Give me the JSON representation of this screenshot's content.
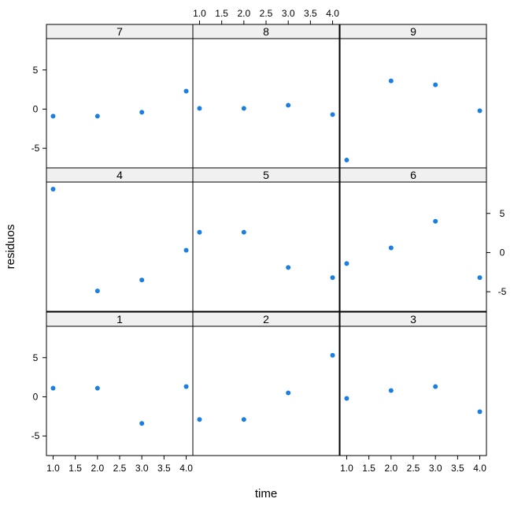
{
  "chart_data": {
    "type": "scatter",
    "xlabel": "time",
    "ylabel": "residuos",
    "xlim": [
      0.85,
      4.15
    ],
    "ylim": [
      -7.5,
      9.0
    ],
    "x_ticks": [
      "1.0",
      "1.5",
      "2.0",
      "2.5",
      "3.0",
      "3.5",
      "4.0"
    ],
    "y_ticks": [
      "-5",
      "0",
      "5"
    ],
    "point_color": "#1a7fe0",
    "panels": [
      {
        "label": "7",
        "x": [
          1.0,
          2.0,
          3.0,
          4.0
        ],
        "y": [
          -0.9,
          -0.9,
          -0.4,
          2.3
        ]
      },
      {
        "label": "8",
        "x": [
          1.0,
          2.0,
          3.0,
          4.0
        ],
        "y": [
          0.1,
          0.1,
          0.5,
          -0.7
        ]
      },
      {
        "label": "9",
        "x": [
          1.0,
          2.0,
          3.0,
          4.0
        ],
        "y": [
          -6.5,
          3.6,
          3.1,
          -0.2
        ]
      },
      {
        "label": "4",
        "x": [
          1.0,
          2.0,
          3.0,
          4.0
        ],
        "y": [
          8.1,
          -4.9,
          -3.5,
          0.3
        ]
      },
      {
        "label": "5",
        "x": [
          1.0,
          2.0,
          3.0,
          4.0
        ],
        "y": [
          2.6,
          2.6,
          -1.9,
          -3.2
        ]
      },
      {
        "label": "6",
        "x": [
          1.0,
          2.0,
          3.0,
          4.0
        ],
        "y": [
          -1.4,
          0.6,
          4.0,
          -3.2
        ]
      },
      {
        "label": "1",
        "x": [
          1.0,
          2.0,
          3.0,
          4.0
        ],
        "y": [
          1.1,
          1.1,
          -3.4,
          1.3
        ]
      },
      {
        "label": "2",
        "x": [
          1.0,
          2.0,
          3.0,
          4.0
        ],
        "y": [
          -2.9,
          -2.9,
          0.5,
          5.3
        ]
      },
      {
        "label": "3",
        "x": [
          1.0,
          2.0,
          3.0,
          4.0
        ],
        "y": [
          -0.2,
          0.8,
          1.3,
          -1.9
        ]
      }
    ]
  }
}
